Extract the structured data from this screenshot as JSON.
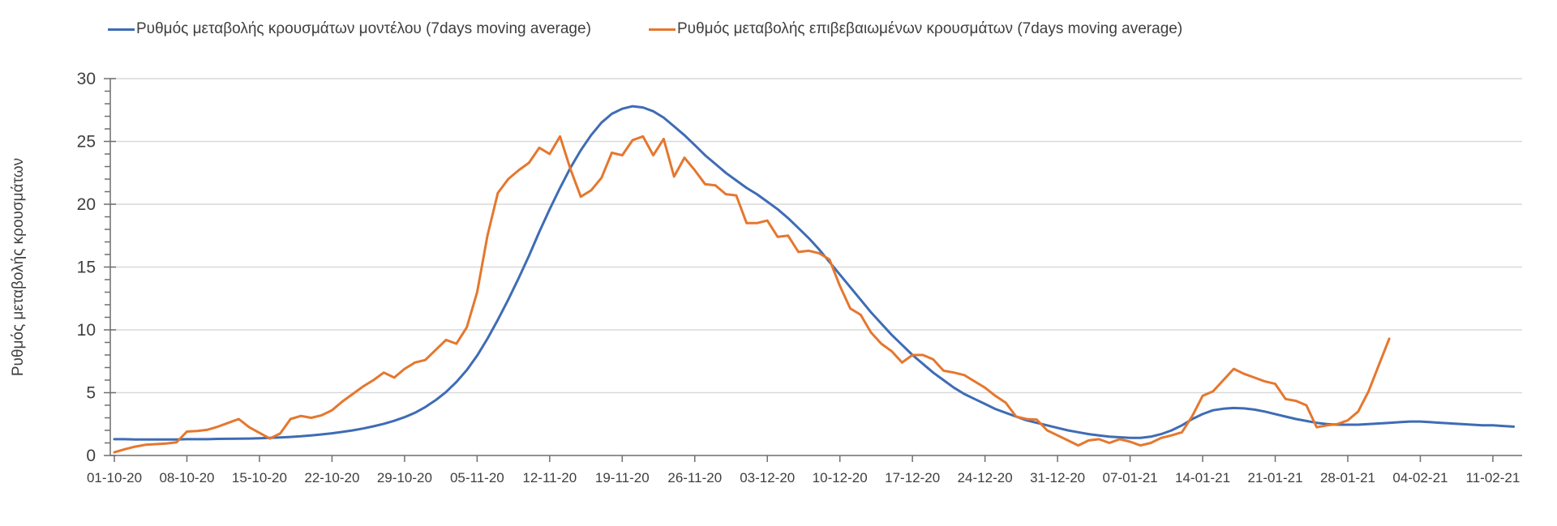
{
  "legend": {
    "model_label": "Ρυθμός μεταβολής κρουσμάτων μοντέλου (7days moving average)",
    "confirmed_label": "Ρυθμός μεταβολής επιβεβαιωμένων κρουσμάτων (7days moving average)"
  },
  "colors": {
    "model_line": "#3E6CB5",
    "confirmed_line": "#E5772E",
    "gridline": "#D9D9D9",
    "axis": "#6E6E6E",
    "text": "#3F3F3F"
  },
  "chart_data": {
    "type": "line",
    "title": "",
    "ylabel": "Ρυθμός μεταβολής κρουσμάτων",
    "xlabel": "",
    "ylim": [
      0,
      30
    ],
    "y_ticks": [
      0,
      5,
      10,
      15,
      20,
      25,
      30
    ],
    "y_minor_tick_step": 1,
    "grid": "horizontal-major-only",
    "legend_position": "top",
    "x_unit": "day",
    "x_start_label": "01-10-20",
    "tick_every_days": 7,
    "x_tick_labels": [
      "01-10-20",
      "08-10-20",
      "15-10-20",
      "22-10-20",
      "29-10-20",
      "05-11-20",
      "12-11-20",
      "19-11-20",
      "26-11-20",
      "03-12-20",
      "10-12-20",
      "17-12-20",
      "24-12-20",
      "31-12-20",
      "07-01-21",
      "14-01-21",
      "21-01-21",
      "28-01-21",
      "04-02-21",
      "11-02-21"
    ],
    "series": [
      {
        "name": "Ρυθμός μεταβολής κρουσμάτων μοντέλου (7days moving average)",
        "color": "#3E6CB5",
        "values": [
          1.3,
          1.3,
          1.28,
          1.27,
          1.27,
          1.27,
          1.28,
          1.3,
          1.3,
          1.3,
          1.32,
          1.33,
          1.34,
          1.35,
          1.37,
          1.4,
          1.44,
          1.48,
          1.53,
          1.6,
          1.68,
          1.77,
          1.88,
          2.0,
          2.15,
          2.32,
          2.52,
          2.76,
          3.05,
          3.4,
          3.85,
          4.4,
          5.05,
          5.85,
          6.8,
          7.95,
          9.3,
          10.8,
          12.4,
          14.1,
          15.9,
          17.8,
          19.6,
          21.3,
          22.9,
          24.3,
          25.5,
          26.5,
          27.2,
          27.6,
          27.8,
          27.7,
          27.4,
          26.9,
          26.2,
          25.5,
          24.7,
          23.9,
          23.2,
          22.5,
          21.9,
          21.3,
          20.8,
          20.2,
          19.6,
          18.9,
          18.1,
          17.3,
          16.4,
          15.4,
          14.4,
          13.4,
          12.4,
          11.4,
          10.5,
          9.6,
          8.8,
          8.0,
          7.3,
          6.6,
          6.0,
          5.4,
          4.9,
          4.5,
          4.1,
          3.7,
          3.4,
          3.1,
          2.8,
          2.6,
          2.4,
          2.2,
          2.0,
          1.85,
          1.7,
          1.6,
          1.5,
          1.45,
          1.4,
          1.4,
          1.5,
          1.7,
          2.0,
          2.4,
          2.9,
          3.3,
          3.6,
          3.72,
          3.78,
          3.75,
          3.65,
          3.5,
          3.3,
          3.1,
          2.9,
          2.75,
          2.6,
          2.5,
          2.45,
          2.45,
          2.45,
          2.5,
          2.55,
          2.6,
          2.65,
          2.7,
          2.7,
          2.65,
          2.6,
          2.55,
          2.5,
          2.45,
          2.4,
          2.4,
          2.35,
          2.3
        ]
      },
      {
        "name": "Ρυθμός μεταβολής επιβεβαιωμένων κρουσμάτων (7days moving average)",
        "color": "#E5772E",
        "values": [
          0.25,
          0.5,
          0.7,
          0.85,
          0.9,
          0.95,
          1.05,
          1.9,
          1.95,
          2.05,
          2.3,
          2.6,
          2.9,
          2.25,
          1.8,
          1.35,
          1.75,
          2.9,
          3.15,
          3.0,
          3.2,
          3.6,
          4.3,
          4.9,
          5.5,
          6.0,
          6.6,
          6.2,
          6.9,
          7.4,
          7.6,
          8.4,
          9.2,
          8.9,
          10.2,
          13.0,
          17.5,
          20.9,
          22.0,
          22.7,
          23.3,
          24.5,
          24.0,
          25.4,
          22.8,
          20.6,
          21.1,
          22.1,
          24.1,
          23.9,
          25.1,
          25.4,
          23.9,
          25.2,
          22.2,
          23.7,
          22.7,
          21.6,
          21.5,
          20.8,
          20.7,
          18.5,
          18.5,
          18.7,
          17.4,
          17.5,
          16.2,
          16.3,
          16.1,
          15.6,
          13.5,
          11.7,
          11.2,
          9.8,
          8.9,
          8.3,
          7.4,
          8.0,
          8.0,
          7.65,
          6.75,
          6.6,
          6.4,
          5.9,
          5.4,
          4.75,
          4.2,
          3.1,
          2.9,
          2.85,
          2.0,
          1.6,
          1.2,
          0.8,
          1.2,
          1.3,
          1.0,
          1.3,
          1.1,
          0.8,
          1.0,
          1.4,
          1.6,
          1.85,
          3.15,
          4.75,
          5.1,
          6.0,
          6.9,
          6.5,
          6.2,
          5.9,
          5.7,
          4.5,
          4.35,
          4.0,
          2.25,
          2.4,
          2.5,
          2.8,
          3.5,
          5.1,
          7.2,
          9.3
        ]
      }
    ]
  }
}
